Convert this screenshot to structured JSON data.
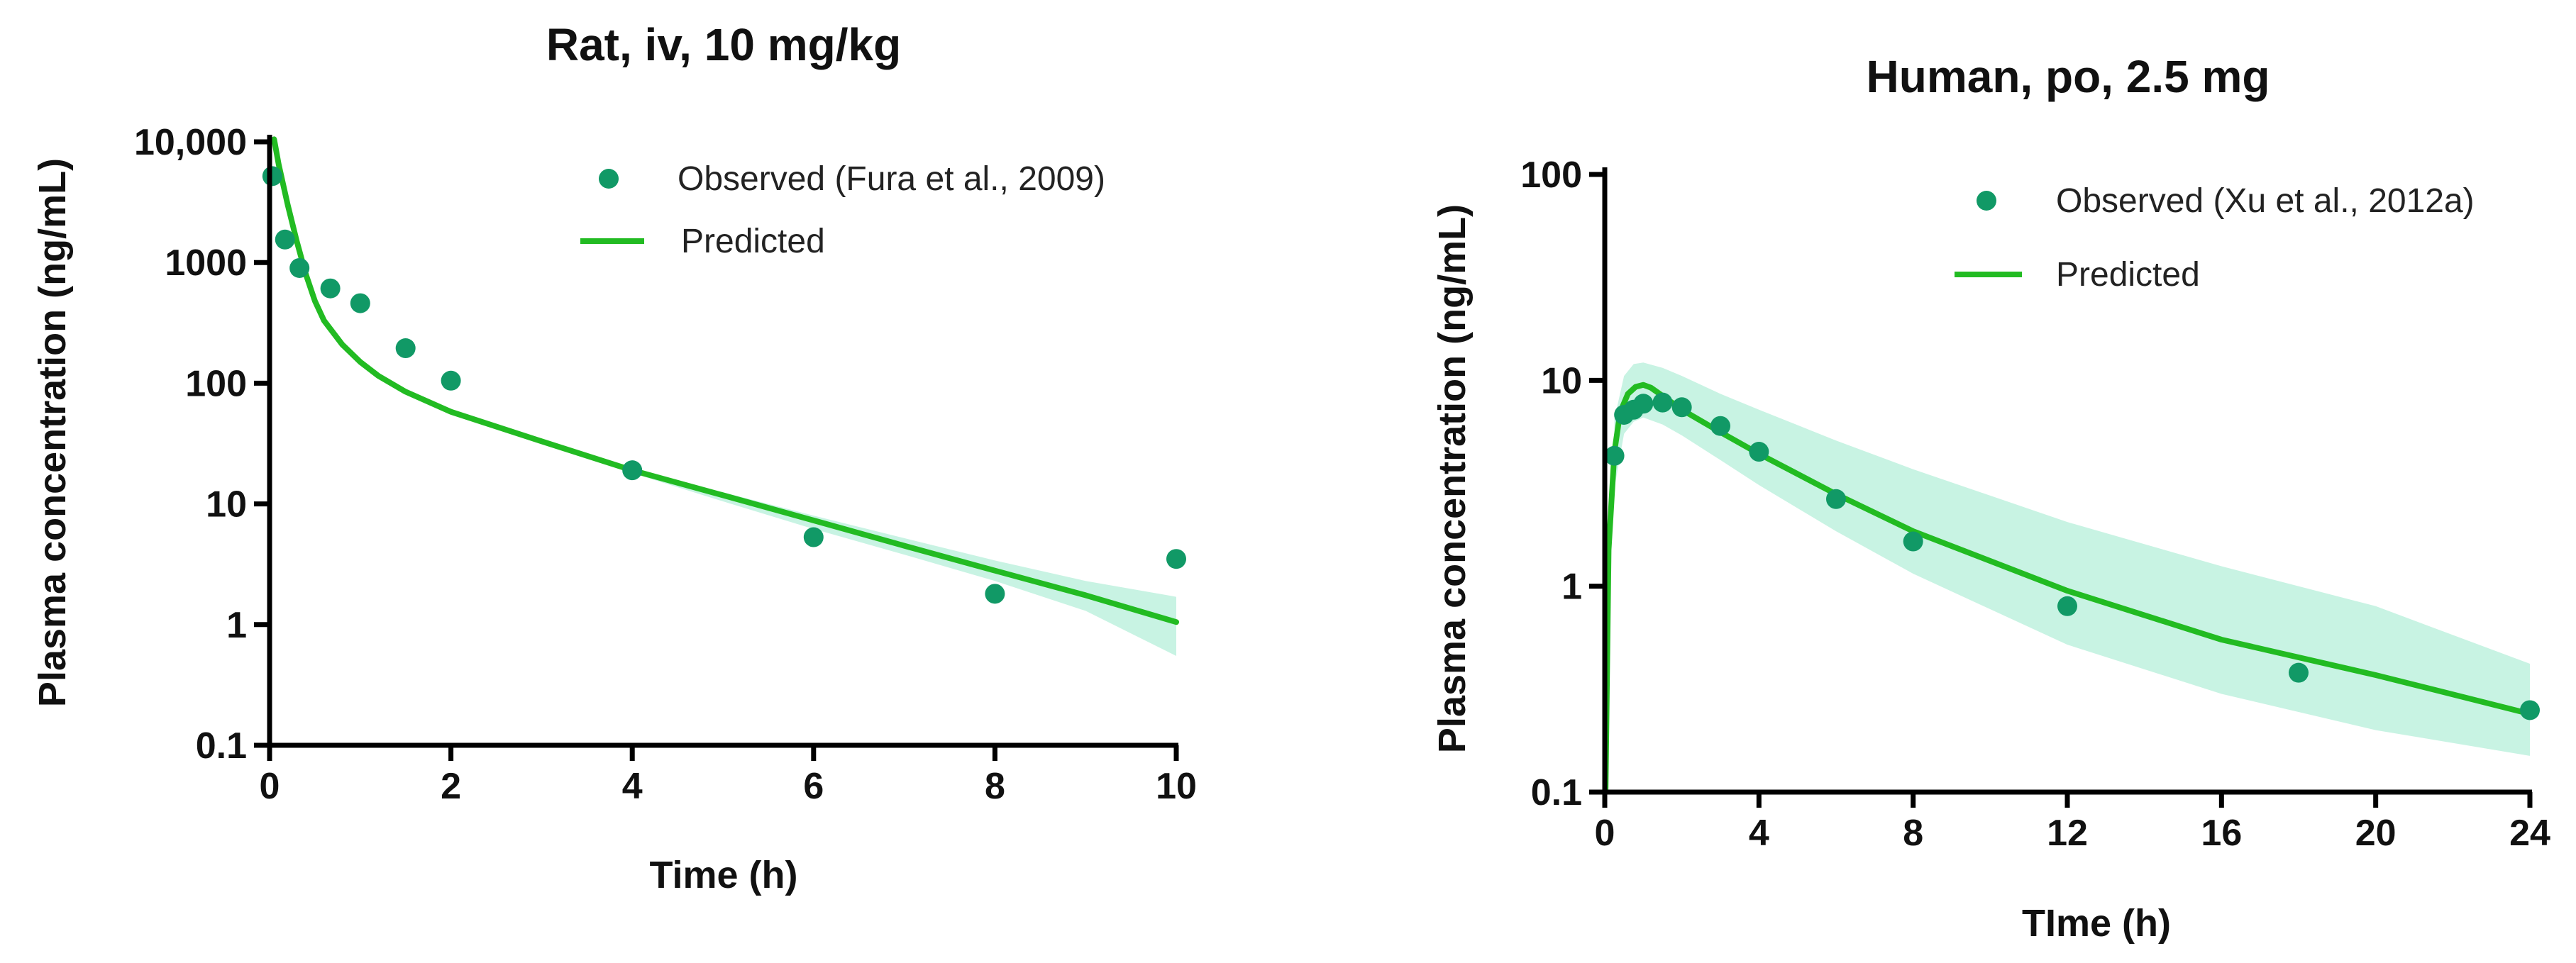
{
  "colors": {
    "observed": "#119966",
    "predicted": "#22BB22",
    "band": "#C8F3E3"
  },
  "chart_data": [
    {
      "type": "scatter",
      "title": "Rat, iv, 10 mg/kg",
      "xlabel": "Time (h)",
      "ylabel": "Plasma concentration (ng/mL)",
      "yscale": "log",
      "xlim": [
        0,
        10
      ],
      "ylim": [
        0.1,
        10000
      ],
      "xticks": [
        0,
        2,
        4,
        6,
        8,
        10
      ],
      "xtick_labels": [
        "0",
        "2",
        "4",
        "6",
        "8",
        "10"
      ],
      "yticks": [
        0.1,
        1,
        10,
        100,
        1000,
        10000
      ],
      "ytick_labels": [
        "0.1",
        "1",
        "10",
        "100",
        "1000",
        "10,000"
      ],
      "legend": {
        "position": "top-right",
        "entries": [
          "Observed (Fura et al., 2009)",
          "Predicted"
        ]
      },
      "series": [
        {
          "name": "Observed (Fura et al., 2009)",
          "kind": "points",
          "x": [
            0.03,
            0.17,
            0.33,
            0.67,
            1,
            1.5,
            2,
            4,
            6,
            8,
            10
          ],
          "y": [
            5200,
            1550,
            900,
            610,
            460,
            195,
            105,
            19,
            5.3,
            1.8,
            3.5
          ]
        },
        {
          "name": "Predicted",
          "kind": "line",
          "x": [
            0.05,
            0.1,
            0.2,
            0.3,
            0.4,
            0.5,
            0.6,
            0.8,
            1,
            1.2,
            1.5,
            2,
            3,
            4,
            5,
            6,
            7,
            8,
            9,
            10
          ],
          "y": [
            10500,
            6500,
            3000,
            1500,
            800,
            480,
            330,
            210,
            150,
            115,
            85,
            58,
            33,
            19,
            11.8,
            7.3,
            4.5,
            2.8,
            1.75,
            1.05
          ]
        },
        {
          "name": "Prediction interval",
          "kind": "band",
          "x": [
            4,
            5,
            6,
            7,
            8,
            9,
            10
          ],
          "upper": [
            19.5,
            12.5,
            8,
            5.2,
            3.4,
            2.3,
            1.7
          ],
          "lower": [
            18,
            10.5,
            6.2,
            3.8,
            2.3,
            1.3,
            0.55
          ]
        }
      ]
    },
    {
      "type": "scatter",
      "title": "Human, po, 2.5 mg",
      "xlabel": "TIme (h)",
      "ylabel": "Plasma concentration (ng/mL)",
      "yscale": "log",
      "xlim": [
        0,
        24
      ],
      "ylim": [
        0.1,
        100
      ],
      "xticks": [
        0,
        4,
        8,
        12,
        16,
        20,
        24
      ],
      "xtick_labels": [
        "0",
        "4",
        "8",
        "12",
        "16",
        "20",
        "24"
      ],
      "yticks": [
        0.1,
        1,
        10,
        100
      ],
      "ytick_labels": [
        "0.1",
        "1",
        "10",
        "100"
      ],
      "legend": {
        "position": "top-right",
        "entries": [
          "Observed (Xu et al., 2012a)",
          "Predicted"
        ]
      },
      "series": [
        {
          "name": "Observed (Xu et al., 2012a)",
          "kind": "points",
          "x": [
            0.25,
            0.5,
            0.75,
            1,
            1.5,
            2,
            3,
            4,
            6,
            8,
            12,
            18,
            24
          ],
          "y": [
            4.3,
            6.8,
            7.2,
            7.7,
            7.8,
            7.4,
            6,
            4.5,
            2.65,
            1.65,
            0.8,
            0.38,
            0.25
          ]
        },
        {
          "name": "Predicted",
          "kind": "line",
          "x": [
            0.02,
            0.1,
            0.25,
            0.4,
            0.6,
            0.8,
            1,
            1.2,
            1.5,
            2,
            3,
            4,
            6,
            8,
            12,
            16,
            20,
            24
          ],
          "y": [
            0.1,
            1.5,
            4.5,
            7,
            8.6,
            9.3,
            9.5,
            9.2,
            8.4,
            7.2,
            5.6,
            4.4,
            2.8,
            1.85,
            0.95,
            0.55,
            0.37,
            0.24
          ]
        },
        {
          "name": "Prediction interval",
          "kind": "band",
          "x": [
            0.25,
            0.5,
            0.75,
            1,
            1.5,
            2,
            3,
            4,
            6,
            8,
            12,
            16,
            20,
            24
          ],
          "upper": [
            6.5,
            10.5,
            12,
            12.2,
            11.5,
            10.5,
            8.6,
            7.2,
            5.1,
            3.7,
            2.05,
            1.25,
            0.8,
            0.42
          ],
          "lower": [
            3,
            5.5,
            6.3,
            6.6,
            6.1,
            5.4,
            4.1,
            3.1,
            1.85,
            1.15,
            0.52,
            0.3,
            0.2,
            0.15
          ]
        }
      ]
    }
  ]
}
